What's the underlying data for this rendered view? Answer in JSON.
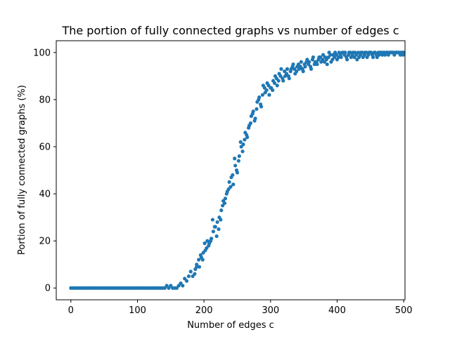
{
  "chart_data": {
    "type": "scatter",
    "title": "The portion of fully connected graphs vs number of edges c",
    "xlabel": "Number of edges c",
    "ylabel": "Portion of fully connected graphs (%)",
    "xlim": [
      -22,
      502
    ],
    "ylim": [
      -5,
      105
    ],
    "xticks": [
      0,
      100,
      200,
      300,
      400,
      500
    ],
    "yticks": [
      0,
      20,
      40,
      60,
      80,
      100
    ],
    "grid": false,
    "legend": "none",
    "series": [
      {
        "color": "#1f77b4",
        "points": [
          [
            0,
            0
          ],
          [
            3,
            0
          ],
          [
            6,
            0
          ],
          [
            9,
            0
          ],
          [
            12,
            0
          ],
          [
            15,
            0
          ],
          [
            18,
            0
          ],
          [
            21,
            0
          ],
          [
            24,
            0
          ],
          [
            27,
            0
          ],
          [
            30,
            0
          ],
          [
            33,
            0
          ],
          [
            36,
            0
          ],
          [
            39,
            0
          ],
          [
            42,
            0
          ],
          [
            45,
            0
          ],
          [
            48,
            0
          ],
          [
            51,
            0
          ],
          [
            54,
            0
          ],
          [
            57,
            0
          ],
          [
            60,
            0
          ],
          [
            63,
            0
          ],
          [
            66,
            0
          ],
          [
            69,
            0
          ],
          [
            72,
            0
          ],
          [
            75,
            0
          ],
          [
            78,
            0
          ],
          [
            81,
            0
          ],
          [
            84,
            0
          ],
          [
            87,
            0
          ],
          [
            90,
            0
          ],
          [
            93,
            0
          ],
          [
            96,
            0
          ],
          [
            99,
            0
          ],
          [
            102,
            0
          ],
          [
            105,
            0
          ],
          [
            108,
            0
          ],
          [
            111,
            0
          ],
          [
            114,
            0
          ],
          [
            117,
            0
          ],
          [
            120,
            0
          ],
          [
            123,
            0
          ],
          [
            126,
            0
          ],
          [
            129,
            0
          ],
          [
            132,
            0
          ],
          [
            135,
            0
          ],
          [
            138,
            0
          ],
          [
            141,
            0
          ],
          [
            144,
            1
          ],
          [
            147,
            0
          ],
          [
            150,
            1
          ],
          [
            153,
            0
          ],
          [
            156,
            0
          ],
          [
            159,
            0
          ],
          [
            162,
            1
          ],
          [
            165,
            2
          ],
          [
            168,
            1
          ],
          [
            171,
            4
          ],
          [
            174,
            3
          ],
          [
            177,
            5
          ],
          [
            180,
            7
          ],
          [
            183,
            5
          ],
          [
            186,
            6
          ],
          [
            189,
            10
          ],
          [
            192,
            12
          ],
          [
            195,
            14
          ],
          [
            198,
            12
          ],
          [
            201,
            19
          ],
          [
            204,
            17
          ],
          [
            207,
            18
          ],
          [
            210,
            20
          ],
          [
            213,
            29
          ],
          [
            216,
            26
          ],
          [
            219,
            22
          ],
          [
            222,
            25
          ],
          [
            225,
            29
          ],
          [
            228,
            35
          ],
          [
            231,
            36
          ],
          [
            234,
            40
          ],
          [
            237,
            42
          ],
          [
            240,
            43
          ],
          [
            243,
            48
          ],
          [
            246,
            55
          ],
          [
            249,
            50
          ],
          [
            252,
            54
          ],
          [
            255,
            62
          ],
          [
            258,
            58
          ],
          [
            261,
            63
          ],
          [
            264,
            65
          ],
          [
            267,
            68
          ],
          [
            270,
            70
          ],
          [
            273,
            74
          ],
          [
            276,
            71
          ],
          [
            279,
            76
          ],
          [
            282,
            80
          ],
          [
            285,
            78
          ],
          [
            288,
            82
          ],
          [
            291,
            85
          ],
          [
            294,
            84
          ],
          [
            297,
            86
          ],
          [
            300,
            85
          ],
          [
            303,
            84
          ],
          [
            306,
            87
          ],
          [
            309,
            89
          ],
          [
            312,
            88
          ],
          [
            315,
            90
          ],
          [
            318,
            89
          ],
          [
            321,
            92
          ],
          [
            324,
            91
          ],
          [
            327,
            90
          ],
          [
            330,
            92
          ],
          [
            333,
            94
          ],
          [
            336,
            93
          ],
          [
            339,
            92
          ],
          [
            342,
            95
          ],
          [
            345,
            94
          ],
          [
            348,
            93
          ],
          [
            351,
            95
          ],
          [
            354,
            96
          ],
          [
            357,
            95
          ],
          [
            360,
            94
          ],
          [
            363,
            97
          ],
          [
            366,
            95
          ],
          [
            369,
            96
          ],
          [
            372,
            97
          ],
          [
            375,
            98
          ],
          [
            378,
            97
          ],
          [
            381,
            96
          ],
          [
            384,
            97
          ],
          [
            387,
            98
          ],
          [
            390,
            99
          ],
          [
            393,
            97
          ],
          [
            396,
            98
          ],
          [
            399,
            99
          ],
          [
            402,
            98
          ],
          [
            405,
            99
          ],
          [
            408,
            100
          ],
          [
            411,
            99
          ],
          [
            414,
            98
          ],
          [
            417,
            99
          ],
          [
            420,
            100
          ],
          [
            423,
            99
          ],
          [
            426,
            98
          ],
          [
            429,
            99
          ],
          [
            432,
            100
          ],
          [
            435,
            99
          ],
          [
            438,
            100
          ],
          [
            441,
            99
          ],
          [
            444,
            100
          ],
          [
            447,
            99
          ],
          [
            450,
            100
          ],
          [
            453,
            99
          ],
          [
            456,
            100
          ],
          [
            459,
            99
          ],
          [
            462,
            100
          ],
          [
            465,
            100
          ],
          [
            468,
            99
          ],
          [
            471,
            100
          ],
          [
            474,
            100
          ],
          [
            477,
            99
          ],
          [
            480,
            100
          ],
          [
            483,
            100
          ],
          [
            486,
            99
          ],
          [
            489,
            100
          ],
          [
            492,
            100
          ],
          [
            495,
            99
          ],
          [
            498,
            100
          ],
          [
            500,
            100
          ],
          [
            187,
            8
          ],
          [
            189,
            9
          ],
          [
            193,
            9
          ],
          [
            196,
            13
          ],
          [
            199,
            15
          ],
          [
            202,
            16
          ],
          [
            205,
            20
          ],
          [
            208,
            19
          ],
          [
            211,
            21
          ],
          [
            214,
            24
          ],
          [
            217,
            26
          ],
          [
            220,
            28
          ],
          [
            223,
            30
          ],
          [
            226,
            33
          ],
          [
            229,
            37
          ],
          [
            232,
            38
          ],
          [
            235,
            41
          ],
          [
            238,
            45
          ],
          [
            241,
            47
          ],
          [
            244,
            44
          ],
          [
            247,
            52
          ],
          [
            250,
            49
          ],
          [
            253,
            56
          ],
          [
            256,
            60
          ],
          [
            259,
            61
          ],
          [
            262,
            66
          ],
          [
            265,
            64
          ],
          [
            268,
            69
          ],
          [
            271,
            73
          ],
          [
            274,
            75
          ],
          [
            277,
            72
          ],
          [
            280,
            79
          ],
          [
            283,
            81
          ],
          [
            286,
            77
          ],
          [
            289,
            86
          ],
          [
            292,
            83
          ],
          [
            295,
            87
          ],
          [
            298,
            82
          ],
          [
            301,
            85
          ],
          [
            304,
            88
          ],
          [
            307,
            90
          ],
          [
            310,
            86
          ],
          [
            313,
            91
          ],
          [
            316,
            93
          ],
          [
            319,
            88
          ],
          [
            322,
            90
          ],
          [
            325,
            93
          ],
          [
            328,
            89
          ],
          [
            331,
            93
          ],
          [
            334,
            95
          ],
          [
            337,
            91
          ],
          [
            340,
            94
          ],
          [
            343,
            93
          ],
          [
            346,
            96
          ],
          [
            349,
            92
          ],
          [
            352,
            94
          ],
          [
            355,
            97
          ],
          [
            358,
            96
          ],
          [
            361,
            93
          ],
          [
            364,
            98
          ],
          [
            367,
            96
          ],
          [
            370,
            95
          ],
          [
            373,
            98
          ],
          [
            376,
            96
          ],
          [
            379,
            99
          ],
          [
            382,
            98
          ],
          [
            385,
            95
          ],
          [
            388,
            100
          ],
          [
            391,
            96
          ],
          [
            394,
            99
          ],
          [
            397,
            100
          ],
          [
            400,
            97
          ],
          [
            403,
            100
          ],
          [
            406,
            98
          ],
          [
            409,
            100
          ],
          [
            412,
            100
          ],
          [
            415,
            97
          ],
          [
            418,
            100
          ],
          [
            421,
            98
          ],
          [
            424,
            100
          ],
          [
            427,
            100
          ],
          [
            430,
            97
          ],
          [
            433,
            98
          ],
          [
            436,
            100
          ],
          [
            439,
            98
          ],
          [
            442,
            100
          ],
          [
            445,
            98
          ],
          [
            448,
            100
          ],
          [
            451,
            100
          ],
          [
            454,
            98
          ],
          [
            457,
            100
          ],
          [
            460,
            98
          ],
          [
            463,
            99
          ],
          [
            466,
            100
          ],
          [
            469,
            100
          ],
          [
            472,
            99
          ],
          [
            475,
            100
          ],
          [
            478,
            100
          ],
          [
            481,
            100
          ],
          [
            484,
            100
          ],
          [
            487,
            100
          ],
          [
            490,
            100
          ],
          [
            493,
            100
          ],
          [
            496,
            100
          ],
          [
            499,
            99
          ]
        ]
      }
    ]
  }
}
